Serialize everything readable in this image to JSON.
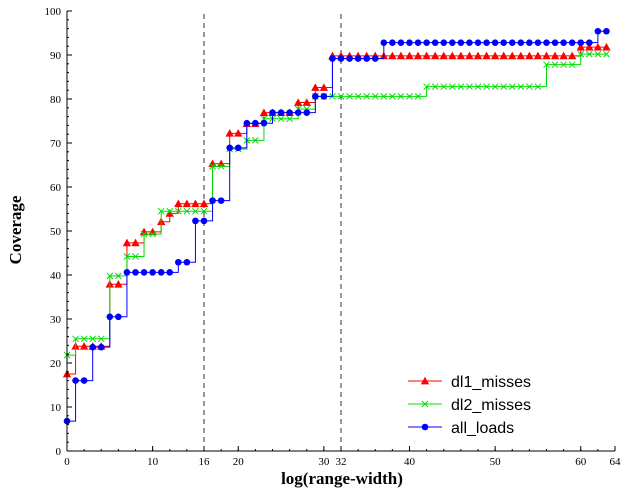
{
  "chart_data": {
    "type": "line",
    "title": "",
    "xlabel": "log(range-width)",
    "ylabel": "Coverage",
    "xlim": [
      0,
      64
    ],
    "ylim": [
      0,
      100
    ],
    "x_ticks": [
      0,
      10,
      16,
      20,
      30,
      32,
      40,
      50,
      60,
      64
    ],
    "y_ticks": [
      0,
      10,
      20,
      30,
      40,
      50,
      60,
      70,
      80,
      90,
      100
    ],
    "reference_lines_x": [
      16,
      32
    ],
    "legend_position": "bottom-right",
    "grid": false,
    "series": [
      {
        "name": "dl1_misses",
        "color": "#ff0000",
        "marker": "triangle",
        "points": [
          [
            0,
            17.5
          ],
          [
            1,
            23.8
          ],
          [
            2,
            23.8
          ],
          [
            3,
            23.8
          ],
          [
            4,
            23.8
          ],
          [
            5,
            37.9
          ],
          [
            6,
            37.9
          ],
          [
            7,
            47.3
          ],
          [
            8,
            47.3
          ],
          [
            9,
            49.8
          ],
          [
            10,
            49.8
          ],
          [
            11,
            52.1
          ],
          [
            12,
            54.0
          ],
          [
            13,
            56.2
          ],
          [
            14,
            56.2
          ],
          [
            15,
            56.2
          ],
          [
            16,
            56.2
          ],
          [
            17,
            65.3
          ],
          [
            18,
            65.3
          ],
          [
            19,
            72.2
          ],
          [
            20,
            72.2
          ],
          [
            21,
            74.4
          ],
          [
            22,
            74.4
          ],
          [
            23,
            76.9
          ],
          [
            24,
            76.9
          ],
          [
            25,
            76.9
          ],
          [
            26,
            76.9
          ],
          [
            27,
            79.2
          ],
          [
            28,
            79.2
          ],
          [
            29,
            82.6
          ],
          [
            30,
            82.6
          ],
          [
            31,
            89.8
          ],
          [
            32,
            89.8
          ],
          [
            33,
            89.8
          ],
          [
            34,
            89.8
          ],
          [
            35,
            89.8
          ],
          [
            36,
            89.8
          ],
          [
            37,
            89.8
          ],
          [
            38,
            89.8
          ],
          [
            39,
            89.8
          ],
          [
            40,
            89.8
          ],
          [
            41,
            89.8
          ],
          [
            42,
            89.8
          ],
          [
            43,
            89.8
          ],
          [
            44,
            89.8
          ],
          [
            45,
            89.8
          ],
          [
            46,
            89.8
          ],
          [
            47,
            89.8
          ],
          [
            48,
            89.8
          ],
          [
            49,
            89.8
          ],
          [
            50,
            89.8
          ],
          [
            51,
            89.8
          ],
          [
            52,
            89.8
          ],
          [
            53,
            89.8
          ],
          [
            54,
            89.8
          ],
          [
            55,
            89.8
          ],
          [
            56,
            89.8
          ],
          [
            57,
            89.8
          ],
          [
            58,
            89.8
          ],
          [
            59,
            89.8
          ],
          [
            60,
            91.8
          ],
          [
            61,
            91.8
          ],
          [
            62,
            91.8
          ],
          [
            63,
            91.8
          ]
        ]
      },
      {
        "name": "dl2_misses",
        "color": "#00dd00",
        "marker": "x",
        "points": [
          [
            0,
            21.8
          ],
          [
            1,
            25.5
          ],
          [
            2,
            25.5
          ],
          [
            3,
            25.5
          ],
          [
            4,
            25.5
          ],
          [
            5,
            39.8
          ],
          [
            6,
            39.8
          ],
          [
            7,
            44.2
          ],
          [
            8,
            44.2
          ],
          [
            9,
            49.3
          ],
          [
            10,
            49.3
          ],
          [
            11,
            54.5
          ],
          [
            12,
            54.5
          ],
          [
            13,
            54.5
          ],
          [
            14,
            54.5
          ],
          [
            15,
            54.5
          ],
          [
            16,
            54.5
          ],
          [
            17,
            64.7
          ],
          [
            18,
            64.7
          ],
          [
            19,
            68.6
          ],
          [
            20,
            68.6
          ],
          [
            21,
            70.6
          ],
          [
            22,
            70.6
          ],
          [
            23,
            75.5
          ],
          [
            24,
            75.5
          ],
          [
            25,
            75.5
          ],
          [
            26,
            75.5
          ],
          [
            27,
            77.7
          ],
          [
            28,
            77.7
          ],
          [
            29,
            80.6
          ],
          [
            30,
            80.6
          ],
          [
            31,
            80.6
          ],
          [
            32,
            80.6
          ],
          [
            33,
            80.6
          ],
          [
            34,
            80.6
          ],
          [
            35,
            80.6
          ],
          [
            36,
            80.6
          ],
          [
            37,
            80.6
          ],
          [
            38,
            80.6
          ],
          [
            39,
            80.6
          ],
          [
            40,
            80.6
          ],
          [
            41,
            80.6
          ],
          [
            42,
            82.8
          ],
          [
            43,
            82.8
          ],
          [
            44,
            82.8
          ],
          [
            45,
            82.8
          ],
          [
            46,
            82.8
          ],
          [
            47,
            82.8
          ],
          [
            48,
            82.8
          ],
          [
            49,
            82.8
          ],
          [
            50,
            82.8
          ],
          [
            51,
            82.8
          ],
          [
            52,
            82.8
          ],
          [
            53,
            82.8
          ],
          [
            54,
            82.8
          ],
          [
            55,
            82.8
          ],
          [
            56,
            87.8
          ],
          [
            57,
            87.8
          ],
          [
            58,
            87.8
          ],
          [
            59,
            87.8
          ],
          [
            60,
            90.2
          ],
          [
            61,
            90.2
          ],
          [
            62,
            90.2
          ],
          [
            63,
            90.2
          ]
        ]
      },
      {
        "name": "all_loads",
        "color": "#0000ff",
        "marker": "circle",
        "points": [
          [
            0,
            6.8
          ],
          [
            1,
            16.0
          ],
          [
            2,
            16.0
          ],
          [
            3,
            23.6
          ],
          [
            4,
            23.6
          ],
          [
            5,
            30.5
          ],
          [
            6,
            30.5
          ],
          [
            7,
            40.6
          ],
          [
            8,
            40.6
          ],
          [
            9,
            40.6
          ],
          [
            10,
            40.6
          ],
          [
            11,
            40.6
          ],
          [
            12,
            40.6
          ],
          [
            13,
            42.9
          ],
          [
            14,
            42.9
          ],
          [
            15,
            52.3
          ],
          [
            16,
            52.3
          ],
          [
            17,
            56.9
          ],
          [
            18,
            56.9
          ],
          [
            19,
            68.9
          ],
          [
            20,
            68.9
          ],
          [
            21,
            74.5
          ],
          [
            22,
            74.5
          ],
          [
            23,
            74.5
          ],
          [
            24,
            76.9
          ],
          [
            25,
            76.9
          ],
          [
            26,
            76.9
          ],
          [
            27,
            76.9
          ],
          [
            28,
            76.9
          ],
          [
            29,
            80.6
          ],
          [
            30,
            80.6
          ],
          [
            31,
            89.2
          ],
          [
            32,
            89.2
          ],
          [
            33,
            89.2
          ],
          [
            34,
            89.2
          ],
          [
            35,
            89.2
          ],
          [
            36,
            89.2
          ],
          [
            37,
            92.8
          ],
          [
            38,
            92.8
          ],
          [
            39,
            92.8
          ],
          [
            40,
            92.8
          ],
          [
            41,
            92.8
          ],
          [
            42,
            92.8
          ],
          [
            43,
            92.8
          ],
          [
            44,
            92.8
          ],
          [
            45,
            92.8
          ],
          [
            46,
            92.8
          ],
          [
            47,
            92.8
          ],
          [
            48,
            92.8
          ],
          [
            49,
            92.8
          ],
          [
            50,
            92.8
          ],
          [
            51,
            92.8
          ],
          [
            52,
            92.8
          ],
          [
            53,
            92.8
          ],
          [
            54,
            92.8
          ],
          [
            55,
            92.8
          ],
          [
            56,
            92.8
          ],
          [
            57,
            92.8
          ],
          [
            58,
            92.8
          ],
          [
            59,
            92.8
          ],
          [
            60,
            92.8
          ],
          [
            61,
            92.8
          ],
          [
            62,
            95.4
          ],
          [
            63,
            95.4
          ]
        ]
      }
    ]
  }
}
